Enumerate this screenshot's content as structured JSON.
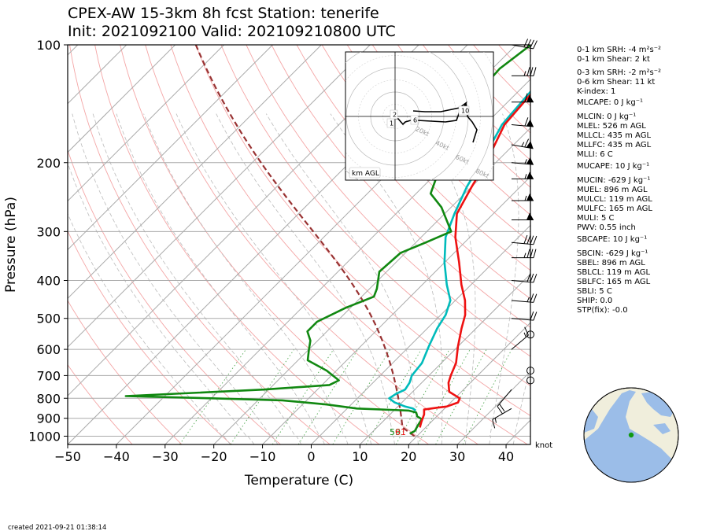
{
  "header": {
    "title_line1": "CPEX-AW 15-3km  8h fcst  Station: tenerife",
    "title_line2": "Init: 2021092100  Valid: 202109210800 UTC"
  },
  "footer": {
    "created": "created 2021-09-21 01:38:14"
  },
  "chart_data": {
    "type": "line",
    "xlabel": "Temperature (C)",
    "ylabel": "Pressure (hPa)",
    "x_ticks": [
      -50,
      -40,
      -30,
      -20,
      -10,
      0,
      10,
      20,
      30,
      40
    ],
    "y_ticks": [
      100,
      200,
      300,
      400,
      500,
      600,
      700,
      800,
      900,
      1000
    ],
    "xlim": [
      -50,
      45
    ],
    "ylim": [
      1050,
      100
    ],
    "y_scale": "log",
    "skew": true,
    "wind_unit_label": "knot",
    "surface_labels": {
      "dewpoint": "59",
      "temperature": "61"
    },
    "series": [
      {
        "kind": "temperature",
        "color": "#ee1111",
        "points": [
          [
            -21,
            100
          ],
          [
            -24,
            115
          ],
          [
            -27,
            130
          ],
          [
            -26,
            160
          ],
          [
            -22,
            200
          ],
          [
            -20,
            230
          ],
          [
            -17.5,
            270
          ],
          [
            -13,
            310
          ],
          [
            -7,
            360
          ],
          [
            -2,
            410
          ],
          [
            2,
            450
          ],
          [
            5,
            490
          ],
          [
            7,
            530
          ],
          [
            10,
            590
          ],
          [
            13,
            650
          ],
          [
            14.5,
            700
          ],
          [
            15.5,
            730
          ],
          [
            17.5,
            770
          ],
          [
            21,
            800
          ],
          [
            21.5,
            820
          ],
          [
            20,
            840
          ],
          [
            18.5,
            845
          ],
          [
            16,
            855
          ],
          [
            17,
            880
          ],
          [
            18,
            920
          ],
          [
            18.8,
            950
          ]
        ]
      },
      {
        "kind": "parcel",
        "color": "#999999",
        "points": [
          [
            -21.5,
            100
          ],
          [
            -24.5,
            115
          ],
          [
            -27.5,
            130
          ],
          [
            -26.5,
            160
          ],
          [
            -23,
            200
          ],
          [
            -21,
            230
          ],
          [
            -18,
            270
          ],
          [
            -15,
            310
          ],
          [
            -10,
            360
          ],
          [
            -5,
            410
          ],
          [
            -1,
            450
          ],
          [
            1,
            490
          ],
          [
            2,
            530
          ],
          [
            4,
            590
          ],
          [
            6,
            650
          ],
          [
            6.5,
            700
          ],
          [
            7.5,
            730
          ],
          [
            8,
            760
          ],
          [
            7,
            780
          ],
          [
            6.5,
            800
          ],
          [
            8.5,
            820
          ],
          [
            11.5,
            840
          ],
          [
            13.5,
            850
          ],
          [
            14.5,
            860
          ]
        ]
      },
      {
        "kind": "dewpoint",
        "color": "#00bbbb",
        "points": [
          [
            -21.5,
            100
          ],
          [
            -24.5,
            115
          ],
          [
            -27.5,
            130
          ],
          [
            -26.5,
            160
          ],
          [
            -23,
            200
          ],
          [
            -21,
            230
          ],
          [
            -18,
            270
          ],
          [
            -15,
            310
          ],
          [
            -10,
            360
          ],
          [
            -5,
            410
          ],
          [
            -1,
            450
          ],
          [
            1,
            490
          ],
          [
            2,
            530
          ],
          [
            4,
            590
          ],
          [
            6,
            650
          ],
          [
            6.5,
            700
          ],
          [
            7.5,
            730
          ],
          [
            8,
            760
          ],
          [
            7,
            780
          ],
          [
            6.5,
            800
          ],
          [
            8.5,
            820
          ],
          [
            11.5,
            840
          ],
          [
            13.5,
            850
          ],
          [
            14.5,
            860
          ]
        ]
      },
      {
        "kind": "dewpoint",
        "color": "#118811",
        "points": [
          [
            -37,
            100
          ],
          [
            -38.5,
            115
          ],
          [
            -38,
            130
          ],
          [
            -36,
            150
          ],
          [
            -33.5,
            170
          ],
          [
            -33,
            190
          ],
          [
            -30,
            210
          ],
          [
            -27,
            240
          ],
          [
            -22,
            260
          ],
          [
            -15,
            300
          ],
          [
            -18,
            320
          ],
          [
            -21,
            340
          ],
          [
            -21.5,
            380
          ],
          [
            -18.5,
            420
          ],
          [
            -17.5,
            440
          ],
          [
            -21,
            470
          ],
          [
            -24,
            510
          ],
          [
            -24,
            540
          ],
          [
            -21.5,
            570
          ],
          [
            -20,
            600
          ],
          [
            -18,
            640
          ],
          [
            -12,
            680
          ],
          [
            -7.5,
            720
          ],
          [
            -8.5,
            740
          ],
          [
            -21,
            760
          ],
          [
            -48,
            790
          ],
          [
            -30,
            800
          ],
          [
            -15,
            810
          ],
          [
            -5,
            830
          ],
          [
            2,
            850
          ],
          [
            13,
            860
          ],
          [
            15,
            870
          ],
          [
            16,
            890
          ],
          [
            17.5,
            905
          ],
          [
            18,
            940
          ],
          [
            18.5,
            970
          ],
          [
            18,
            985
          ]
        ]
      }
    ],
    "isotherms_every": 10,
    "dry_adiabats": true,
    "moist_adiabats": true,
    "mixing_ratio_lines": true,
    "hodograph": {
      "ring_labels": [
        "20kt",
        "40kt",
        "60kt",
        "80kt"
      ],
      "height_labels": [
        "1",
        "2",
        "6",
        "10"
      ],
      "legend": "km AGL",
      "color": "#000000"
    },
    "wind_barbs": [
      {
        "p": 100,
        "speed": 40,
        "dir": 280
      },
      {
        "p": 120,
        "speed": 35,
        "dir": 270
      },
      {
        "p": 140,
        "speed": 60,
        "dir": 270
      },
      {
        "p": 160,
        "speed": 60,
        "dir": 275
      },
      {
        "p": 180,
        "speed": 65,
        "dir": 280
      },
      {
        "p": 200,
        "speed": 55,
        "dir": 275
      },
      {
        "p": 220,
        "speed": 55,
        "dir": 270
      },
      {
        "p": 250,
        "speed": 55,
        "dir": 270
      },
      {
        "p": 280,
        "speed": 50,
        "dir": 270
      },
      {
        "p": 320,
        "speed": 40,
        "dir": 275
      },
      {
        "p": 350,
        "speed": 35,
        "dir": 270
      },
      {
        "p": 400,
        "speed": 30,
        "dir": 275
      },
      {
        "p": 450,
        "speed": 25,
        "dir": 275
      },
      {
        "p": 500,
        "speed": 20,
        "dir": 275
      },
      {
        "p": 550,
        "speed": 0,
        "dir": 0
      },
      {
        "p": 600,
        "speed": 15,
        "dir": 230
      },
      {
        "p": 680,
        "speed": 0,
        "dir": 0
      },
      {
        "p": 720,
        "speed": 0,
        "dir": 0
      },
      {
        "p": 760,
        "speed": 20,
        "dir": 40
      },
      {
        "p": 850,
        "speed": 15,
        "dir": 60
      }
    ]
  },
  "indices": [
    "0-1 km SRH: -4 m²s⁻²",
    "0-1 km Shear: 2 kt",
    "0-3 km SRH: -2 m²s⁻²",
    "0-6 km Shear: 11 kt",
    "K-index: 1",
    "MLCAPE: 0 J kg⁻¹",
    "MLCIN: 0 J kg⁻¹",
    "MLEL: 526 m AGL",
    "MLLCL: 435 m AGL",
    "MLLFC: 435 m AGL",
    "MLLI: 6 C",
    "MUCAPE: 10 J kg⁻¹",
    "MUCIN: -629 J kg⁻¹",
    "MUEL: 896 m AGL",
    "MULCL: 119 m AGL",
    "MULFC: 165 m AGL",
    "MULI: 5 C",
    "PWV: 0.55 inch",
    "SBCAPE: 10 J kg⁻¹",
    "SBCIN: -629 J kg⁻¹",
    "SBEL: 896 m AGL",
    "SBLCL: 119 m AGL",
    "SBLFC: 165 m AGL",
    "SBLI: 5 C",
    "SHIP: 0.0",
    "STP(fix): -0.0"
  ]
}
